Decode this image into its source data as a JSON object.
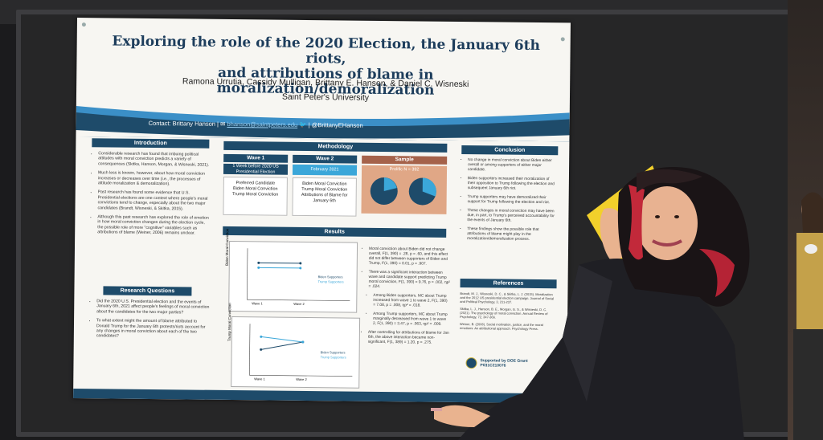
{
  "poster": {
    "title_line1": "Exploring the role of the 2020 Election, the January 6th riots,",
    "title_line2": "and attributions of blame in moralization/demoralization",
    "authors": "Ramona Urrutia, Cassidy Mulligan, Brittany E. Hanson, & Daniel C. Wisneski",
    "university": "Saint Peter's University",
    "contact_prefix": "Contact: Brittany Hanson |",
    "contact_email": "bhanson@saintpeters.edu",
    "contact_handle": "| @BrittanyEHanson",
    "introduction": {
      "heading": "Introduction",
      "bullets": [
        "Considerable research has found that imbuing political attitudes with moral conviction predicts a variety of consequences (Skitka, Hanson, Morgan, & Wisneski, 2021).",
        "Much less is known, however, about how moral conviction increases or decreases over time (i.e., the processes of attitude moralization & demoralization).",
        "Past research has found some evidence that U.S. Presidential elections are one context where people's moral convictions tend to change, especially about the two major candidates (Brandt, Wisneski, & Skitka, 2015).",
        "Although this past research has explored the role of emotion in how moral conviction changes during the election cycle, the possible role of more \"cognitive\" variables such as attributions of blame (Weiner, 2006) remains unclear."
      ]
    },
    "research_questions": {
      "heading": "Research Questions",
      "bullets": [
        "Did the 2020 U.S. Presidential election and the events of January 6th, 2021 affect people's feelings of moral conviction about the candidates for the two major parties?",
        "To what extent might the amount of blame attributed to Donald Trump for the January 6th protests/riots account for any changes in moral conviction about each of the two candidates?"
      ]
    },
    "methodology": {
      "heading": "Methodology",
      "wave1": {
        "label": "Wave 1",
        "date": "1 Week before 2020 US Presidential Election",
        "items": [
          "Preferred Candidate",
          "Biden Moral Conviction",
          "Trump Moral Conviction"
        ]
      },
      "wave2": {
        "label": "Wave 2",
        "date": "February 2021",
        "items": [
          "Biden Moral Conviction",
          "Trump Moral Conviction",
          "Attributions of Blame for January 6th"
        ]
      },
      "sample": {
        "label": "Sample",
        "n": "Prolific N = 392"
      }
    },
    "results": {
      "heading": "Results",
      "plot1_ylabel": "Biden Moral Conviction",
      "plot2_ylabel": "Trump Moral Conviction",
      "legend_biden": "Biden Supporters",
      "legend_trump": "Trump Supporters",
      "x_wave1": "Wave 1",
      "x_wave2": "Wave 2",
      "bullets": [
        "Moral conviction about Biden did not change overall, F(1, 390) = .28, p = .60, and this effect did not differ between supporters of Biden and Trump, F(1, 390) = 0.01, p = .907.",
        "There was a significant interaction between wave and candidate support predicting Trump moral conviction, F(1, 390) = 9.76, p = .002, ηp² = .024.",
        "Among Biden supporters, MC about Trump increased from wave 1 to wave 2, F(1, 390) = 7.08, p = .008, ηp² = .018.",
        "Among Trump supporters, MC about Trump marginally decreased from wave 1 to wave 2, F(1, 390) = 3.47, p = .063, ηp² = .009.",
        "After controlling for attributions of blame for Jan 6th, the above interaction became non-significant, F(1, 389) = 1.20, p = .275."
      ]
    },
    "conclusion": {
      "heading": "Conclusion",
      "bullets": [
        "No change in moral conviction about Biden either overall or among supporters of either major candidate.",
        "Biden supporters increased their moralization of their opposition to Trump following the election and subsequent January 6th riot.",
        "Trump supporters may have demoralized their support for Trump following the election and riot.",
        "These changes in moral conviction may have been due, in part, to Trump's perceived accountability for the events of January 6th.",
        "These findings show the possible role that attributions of blame might play in the moralization/demoralization process."
      ]
    },
    "references": {
      "heading": "References",
      "items": [
        "Brandt, M. J., Wisneski, D. C., & Skitka, L. J. (2015). Moralization and the 2012 US presidential election campaign. Journal of Social and Political Psychology, 3, 211-237.",
        "Skitka, L. J., Hanson, B. E., Morgan, G. S., & Wisneski, D. C. (2021). The psychology of moral conviction. Annual Review of Psychology, 72, 347-366.",
        "Weiner, B. (2006). Social motivation, justice, and the moral emotions: An attributional approach. Psychology Press."
      ]
    },
    "grant": "Supported by DOE Grant P031C210076"
  },
  "colors": {
    "navy": "#1e4b6a",
    "light_blue": "#3ba7d9",
    "accent_blue": "#3b8fc7",
    "sample_orange": "#e0a786"
  }
}
